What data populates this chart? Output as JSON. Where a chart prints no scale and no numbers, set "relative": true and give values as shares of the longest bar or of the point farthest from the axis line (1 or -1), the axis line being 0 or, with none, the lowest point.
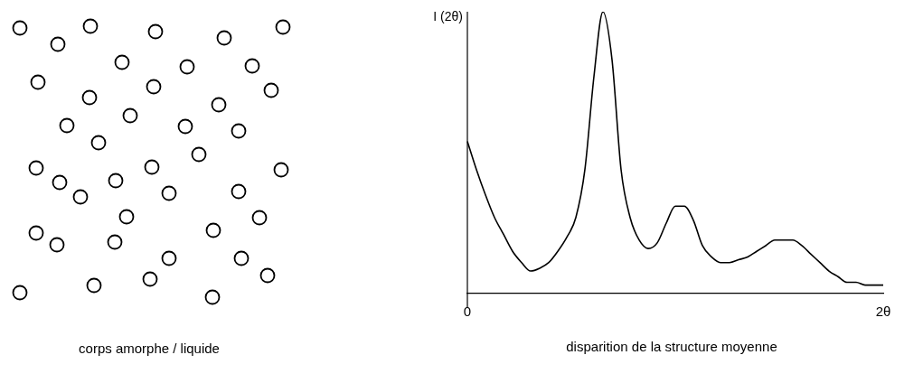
{
  "chart_data": [
    {
      "type": "other",
      "annotations": [
        "corps amorphe / liquide"
      ]
    },
    {
      "type": "line",
      "relative": true,
      "ylabel": "I (2θ)",
      "categories": [
        "0",
        null,
        null,
        null,
        null,
        null,
        null,
        null,
        null,
        null,
        null,
        null,
        null,
        null,
        null,
        null,
        null,
        null,
        null,
        null,
        null,
        null,
        null,
        null,
        null,
        null,
        null,
        null,
        null,
        null,
        null,
        null,
        null,
        null,
        null,
        null,
        null,
        null,
        null,
        null,
        null,
        null,
        null,
        null,
        null,
        null,
        "2θ"
      ],
      "color": "#000000",
      "marker": "none",
      "grid": false,
      "legend": false,
      "values": [
        0.54,
        0.44,
        0.35,
        0.27,
        0.21,
        0.15,
        0.11,
        0.08,
        0.09,
        0.11,
        0.15,
        0.2,
        0.27,
        0.44,
        0.77,
        1,
        0.83,
        0.44,
        0.27,
        0.19,
        0.16,
        0.18,
        0.25,
        0.31,
        0.31,
        0.26,
        0.17,
        0.13,
        0.11,
        0.11,
        0.12,
        0.13,
        0.15,
        0.17,
        0.19,
        0.19,
        0.19,
        0.17,
        0.14,
        0.11,
        0.08,
        0.06,
        0.04,
        0.04,
        0.03,
        0.03,
        0.03
      ],
      "annotations": [
        "disparition de la structure moyenne"
      ]
    }
  ]
}
